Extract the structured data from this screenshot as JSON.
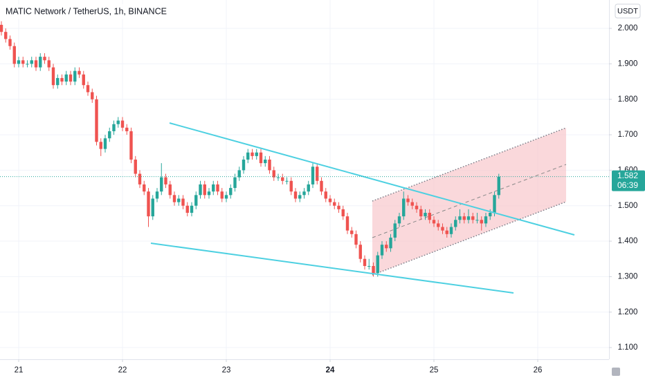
{
  "chart_data": {
    "type": "candlestick",
    "title": "MATIC Network / TetherUS, 1h, BINANCE",
    "currency": "USDT",
    "countdown": "06:39",
    "x": [
      0,
      1,
      2,
      3,
      4,
      5,
      6,
      7,
      8,
      9,
      10,
      11,
      12,
      13,
      14,
      15,
      16,
      17,
      18,
      19,
      20,
      21,
      22,
      23,
      24,
      25,
      26,
      27,
      28,
      29,
      30,
      31,
      32,
      33,
      34,
      35,
      36,
      37,
      38,
      39,
      40,
      41,
      42,
      43,
      44,
      45,
      46,
      47,
      48,
      49,
      50,
      51,
      52,
      53,
      54,
      55,
      56,
      57,
      58,
      59,
      60,
      61,
      62,
      63,
      64,
      65,
      66,
      67,
      68,
      69,
      70,
      71,
      72,
      73,
      74,
      75,
      76,
      77,
      78,
      79,
      80,
      81,
      82,
      83,
      84,
      85,
      86,
      87,
      88,
      89,
      90,
      91,
      92,
      93,
      94,
      95,
      96,
      97,
      98,
      99,
      100,
      101,
      102,
      103,
      104,
      105,
      106,
      107,
      108,
      109,
      110,
      111,
      112,
      113,
      114,
      115
    ],
    "ohlc": [
      [
        2.01,
        2.02,
        1.98,
        1.99
      ],
      [
        1.99,
        2.0,
        1.96,
        1.97
      ],
      [
        1.97,
        1.98,
        1.94,
        1.95
      ],
      [
        1.95,
        1.96,
        1.89,
        1.9
      ],
      [
        1.9,
        1.92,
        1.89,
        1.91
      ],
      [
        1.91,
        1.92,
        1.89,
        1.9
      ],
      [
        1.9,
        1.91,
        1.89,
        1.9
      ],
      [
        1.9,
        1.92,
        1.89,
        1.91
      ],
      [
        1.91,
        1.92,
        1.88,
        1.89
      ],
      [
        1.89,
        1.93,
        1.88,
        1.92
      ],
      [
        1.92,
        1.93,
        1.9,
        1.91
      ],
      [
        1.91,
        1.92,
        1.88,
        1.89
      ],
      [
        1.89,
        1.9,
        1.83,
        1.84
      ],
      [
        1.84,
        1.87,
        1.83,
        1.86
      ],
      [
        1.86,
        1.87,
        1.84,
        1.85
      ],
      [
        1.85,
        1.88,
        1.84,
        1.87
      ],
      [
        1.87,
        1.88,
        1.84,
        1.85
      ],
      [
        1.85,
        1.89,
        1.84,
        1.88
      ],
      [
        1.88,
        1.89,
        1.86,
        1.87
      ],
      [
        1.87,
        1.88,
        1.83,
        1.84
      ],
      [
        1.84,
        1.85,
        1.81,
        1.82
      ],
      [
        1.82,
        1.83,
        1.79,
        1.8
      ],
      [
        1.8,
        1.81,
        1.67,
        1.68
      ],
      [
        1.68,
        1.69,
        1.64,
        1.66
      ],
      [
        1.66,
        1.7,
        1.65,
        1.69
      ],
      [
        1.69,
        1.72,
        1.68,
        1.71
      ],
      [
        1.71,
        1.74,
        1.7,
        1.73
      ],
      [
        1.73,
        1.75,
        1.72,
        1.74
      ],
      [
        1.74,
        1.75,
        1.71,
        1.72
      ],
      [
        1.72,
        1.73,
        1.7,
        1.71
      ],
      [
        1.71,
        1.72,
        1.62,
        1.63
      ],
      [
        1.63,
        1.64,
        1.58,
        1.59
      ],
      [
        1.59,
        1.6,
        1.55,
        1.56
      ],
      [
        1.56,
        1.57,
        1.53,
        1.54
      ],
      [
        1.54,
        1.55,
        1.44,
        1.47
      ],
      [
        1.47,
        1.53,
        1.46,
        1.52
      ],
      [
        1.52,
        1.55,
        1.51,
        1.54
      ],
      [
        1.54,
        1.62,
        1.53,
        1.58
      ],
      [
        1.58,
        1.59,
        1.55,
        1.56
      ],
      [
        1.56,
        1.57,
        1.52,
        1.53
      ],
      [
        1.53,
        1.54,
        1.5,
        1.51
      ],
      [
        1.51,
        1.53,
        1.5,
        1.52
      ],
      [
        1.52,
        1.53,
        1.49,
        1.5
      ],
      [
        1.5,
        1.51,
        1.47,
        1.48
      ],
      [
        1.48,
        1.51,
        1.47,
        1.5
      ],
      [
        1.5,
        1.54,
        1.49,
        1.53
      ],
      [
        1.53,
        1.57,
        1.52,
        1.56
      ],
      [
        1.56,
        1.57,
        1.52,
        1.53
      ],
      [
        1.53,
        1.55,
        1.52,
        1.54
      ],
      [
        1.54,
        1.57,
        1.53,
        1.56
      ],
      [
        1.56,
        1.57,
        1.53,
        1.54
      ],
      [
        1.54,
        1.55,
        1.51,
        1.52
      ],
      [
        1.52,
        1.54,
        1.51,
        1.53
      ],
      [
        1.53,
        1.56,
        1.52,
        1.55
      ],
      [
        1.55,
        1.59,
        1.54,
        1.58
      ],
      [
        1.58,
        1.61,
        1.57,
        1.6
      ],
      [
        1.6,
        1.64,
        1.59,
        1.63
      ],
      [
        1.63,
        1.66,
        1.62,
        1.65
      ],
      [
        1.65,
        1.66,
        1.63,
        1.64
      ],
      [
        1.64,
        1.66,
        1.63,
        1.65
      ],
      [
        1.65,
        1.66,
        1.61,
        1.62
      ],
      [
        1.62,
        1.64,
        1.61,
        1.63
      ],
      [
        1.63,
        1.64,
        1.59,
        1.6
      ],
      [
        1.6,
        1.61,
        1.57,
        1.58
      ],
      [
        1.58,
        1.59,
        1.57,
        1.58
      ],
      [
        1.58,
        1.59,
        1.56,
        1.57
      ],
      [
        1.57,
        1.58,
        1.56,
        1.57
      ],
      [
        1.57,
        1.58,
        1.53,
        1.54
      ],
      [
        1.54,
        1.55,
        1.51,
        1.52
      ],
      [
        1.52,
        1.54,
        1.51,
        1.53
      ],
      [
        1.53,
        1.55,
        1.52,
        1.54
      ],
      [
        1.54,
        1.57,
        1.53,
        1.56
      ],
      [
        1.56,
        1.62,
        1.55,
        1.61
      ],
      [
        1.61,
        1.62,
        1.56,
        1.57
      ],
      [
        1.57,
        1.58,
        1.53,
        1.54
      ],
      [
        1.54,
        1.55,
        1.51,
        1.52
      ],
      [
        1.52,
        1.53,
        1.5,
        1.51
      ],
      [
        1.51,
        1.52,
        1.49,
        1.5
      ],
      [
        1.5,
        1.51,
        1.48,
        1.49
      ],
      [
        1.49,
        1.5,
        1.46,
        1.47
      ],
      [
        1.47,
        1.48,
        1.42,
        1.43
      ],
      [
        1.43,
        1.44,
        1.41,
        1.42
      ],
      [
        1.42,
        1.43,
        1.38,
        1.39
      ],
      [
        1.39,
        1.4,
        1.34,
        1.35
      ],
      [
        1.35,
        1.36,
        1.32,
        1.33
      ],
      [
        1.33,
        1.35,
        1.32,
        1.33
      ],
      [
        1.33,
        1.34,
        1.3,
        1.31
      ],
      [
        1.31,
        1.37,
        1.3,
        1.36
      ],
      [
        1.36,
        1.4,
        1.35,
        1.39
      ],
      [
        1.39,
        1.4,
        1.37,
        1.38
      ],
      [
        1.38,
        1.42,
        1.37,
        1.41
      ],
      [
        1.41,
        1.46,
        1.4,
        1.45
      ],
      [
        1.45,
        1.48,
        1.44,
        1.47
      ],
      [
        1.47,
        1.54,
        1.46,
        1.52
      ],
      [
        1.52,
        1.53,
        1.5,
        1.51
      ],
      [
        1.51,
        1.52,
        1.49,
        1.5
      ],
      [
        1.5,
        1.51,
        1.48,
        1.49
      ],
      [
        1.49,
        1.5,
        1.46,
        1.47
      ],
      [
        1.47,
        1.49,
        1.46,
        1.48
      ],
      [
        1.48,
        1.49,
        1.45,
        1.46
      ],
      [
        1.46,
        1.47,
        1.44,
        1.45
      ],
      [
        1.45,
        1.46,
        1.43,
        1.44
      ],
      [
        1.44,
        1.45,
        1.42,
        1.43
      ],
      [
        1.43,
        1.44,
        1.41,
        1.42
      ],
      [
        1.42,
        1.45,
        1.41,
        1.44
      ],
      [
        1.44,
        1.47,
        1.43,
        1.46
      ],
      [
        1.46,
        1.49,
        1.45,
        1.47
      ],
      [
        1.47,
        1.48,
        1.45,
        1.46
      ],
      [
        1.46,
        1.49,
        1.45,
        1.47
      ],
      [
        1.47,
        1.48,
        1.45,
        1.46
      ],
      [
        1.46,
        1.48,
        1.45,
        1.46
      ],
      [
        1.46,
        1.47,
        1.43,
        1.45
      ],
      [
        1.45,
        1.48,
        1.44,
        1.47
      ],
      [
        1.47,
        1.49,
        1.46,
        1.48
      ],
      [
        1.48,
        1.54,
        1.47,
        1.53
      ],
      [
        1.53,
        1.59,
        1.52,
        1.582
      ]
    ],
    "up_color": "#26a69a",
    "down_color": "#ef5350",
    "xlim": [
      -0.32,
      140.48
    ],
    "xticks": [
      {
        "value": 4,
        "label": "21"
      },
      {
        "value": 28,
        "label": "22"
      },
      {
        "value": 52,
        "label": "23"
      },
      {
        "value": 76,
        "label": "24"
      },
      {
        "value": 100,
        "label": "25"
      },
      {
        "value": 124,
        "label": "26"
      }
    ],
    "ylim": [
      1.067,
      2.08
    ],
    "yticks": [
      {
        "value": 1.1,
        "label": "1.100"
      },
      {
        "value": 1.2,
        "label": "1.200"
      },
      {
        "value": 1.3,
        "label": "1.300"
      },
      {
        "value": 1.4,
        "label": "1.400"
      },
      {
        "value": 1.5,
        "label": "1.500"
      },
      {
        "value": 1.6,
        "label": "1.600"
      },
      {
        "value": 1.7,
        "label": "1.700"
      },
      {
        "value": 1.8,
        "label": "1.800"
      },
      {
        "value": 1.9,
        "label": "1.900"
      },
      {
        "value": 2.0,
        "label": "2.000"
      }
    ],
    "grid": true
  }
}
